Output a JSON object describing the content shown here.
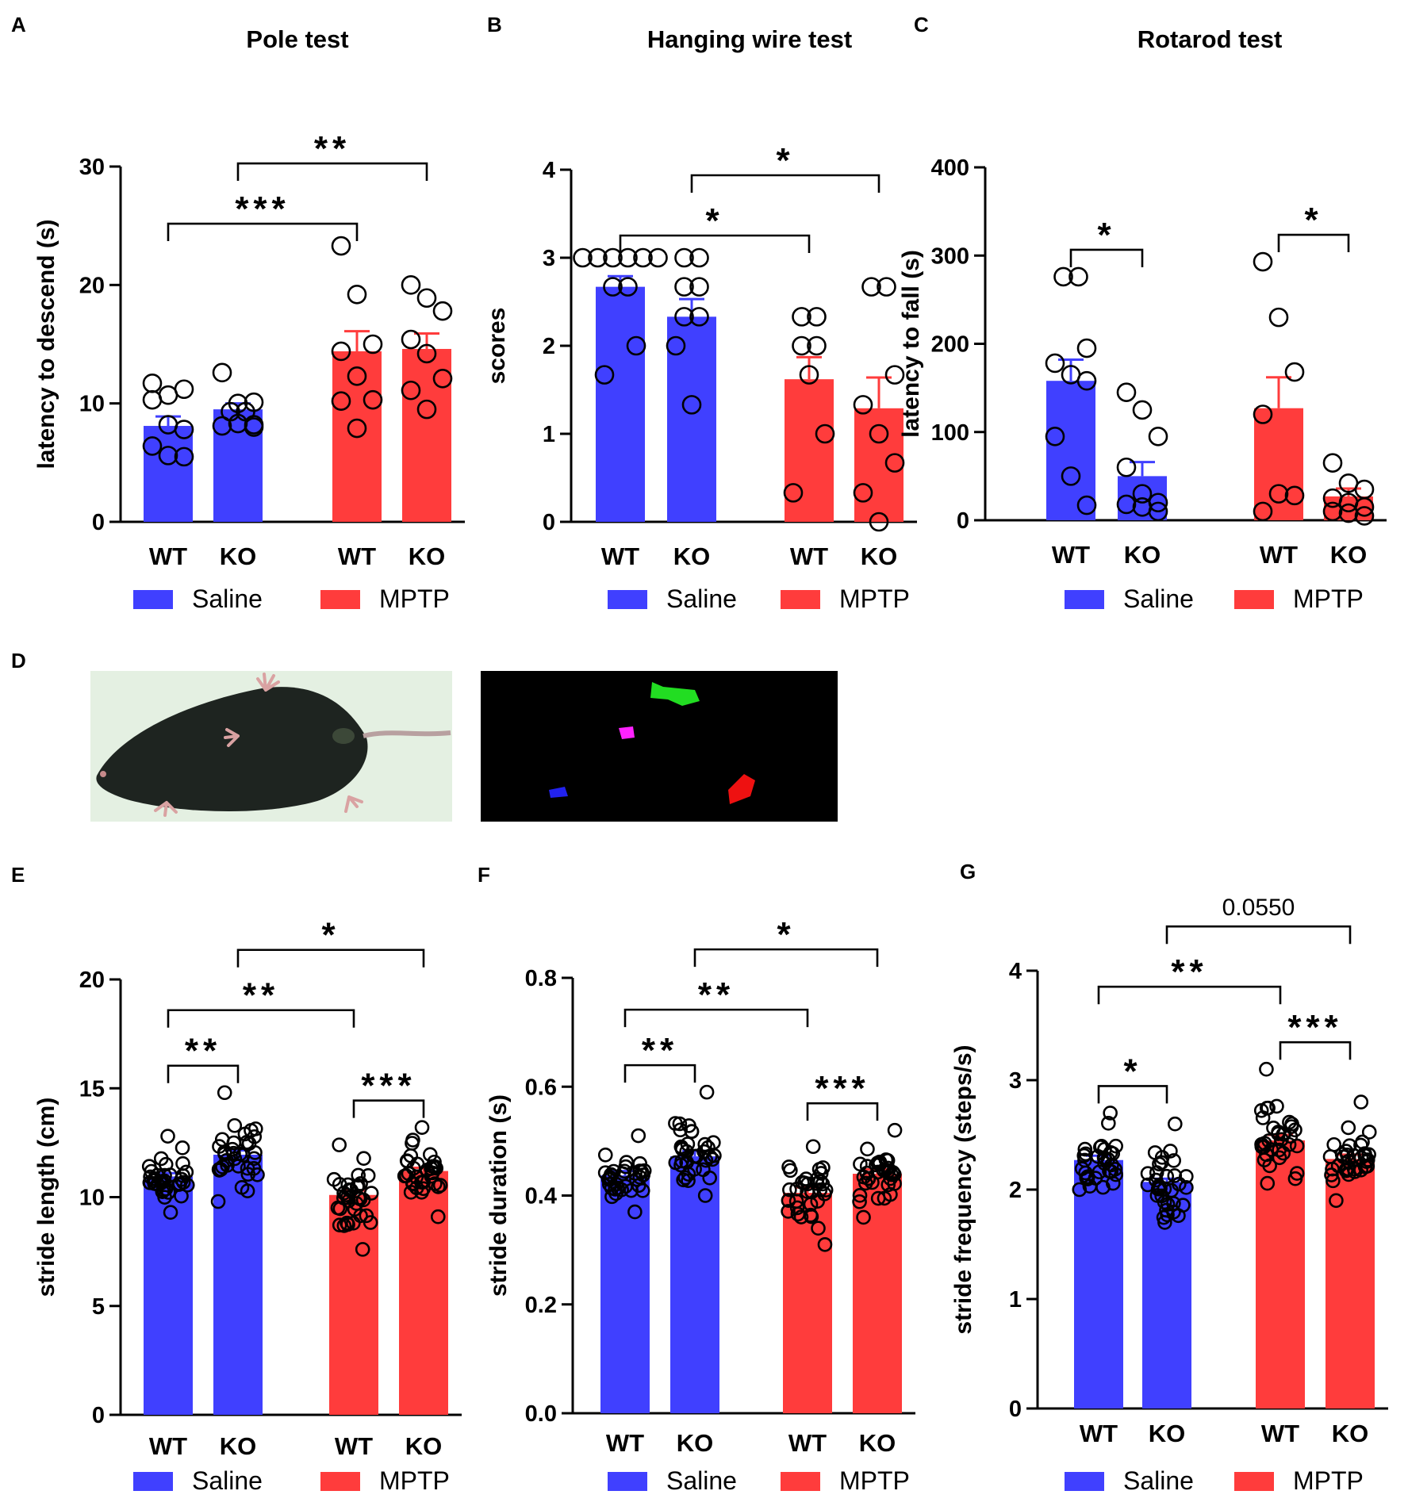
{
  "colors": {
    "saline": "#4040ff",
    "mptp": "#ff3c3c",
    "axis": "#000000"
  },
  "legend": {
    "saline": "Saline",
    "mptp": "MPTP"
  },
  "panel_d": {
    "letter": "D",
    "photo_description": "mouse-ventral-view",
    "paw_colors": [
      "#22dd22",
      "#ff22ff",
      "#2222ee",
      "#ee1111"
    ]
  },
  "chart_data": [
    {
      "panel": "A",
      "type": "bar",
      "title": "Pole test",
      "ylabel": "latency to descend (s)",
      "ylim": [
        0,
        30
      ],
      "yticks": [
        0,
        10,
        20,
        30
      ],
      "categories": [
        "WT",
        "KO",
        "WT",
        "KO"
      ],
      "groups": [
        "Saline",
        "Saline",
        "MPTP",
        "MPTP"
      ],
      "values": [
        8.1,
        9.5,
        14.4,
        14.6
      ],
      "errors": [
        0.8,
        0.5,
        1.7,
        1.3
      ],
      "points": [
        [
          11.7,
          10.7,
          11.2,
          10.3,
          8.2,
          7.8,
          6.4,
          5.6,
          5.5
        ],
        [
          12.6,
          10.0,
          10.1,
          9.3,
          9.3,
          8.2,
          8.1,
          8.3,
          8.0
        ],
        [
          23.3,
          19.2,
          15.0,
          14.4,
          12.3,
          10.3,
          10.2,
          7.9
        ],
        [
          20.0,
          18.9,
          17.8,
          15.4,
          14.2,
          12.1,
          11.1,
          9.5
        ]
      ],
      "brackets": [
        {
          "from": 0,
          "to": 2,
          "label": "***",
          "level": 0
        },
        {
          "from": 1,
          "to": 3,
          "label": "**",
          "level": 1
        }
      ]
    },
    {
      "panel": "B",
      "type": "bar",
      "title": "Hanging wire test",
      "ylabel": "scores",
      "ylim": [
        0,
        4
      ],
      "yticks": [
        0,
        1,
        2,
        3,
        4
      ],
      "categories": [
        "WT",
        "KO",
        "WT",
        "KO"
      ],
      "groups": [
        "Saline",
        "Saline",
        "MPTP",
        "MPTP"
      ],
      "values": [
        2.67,
        2.33,
        1.62,
        1.29
      ],
      "errors": [
        0.12,
        0.2,
        0.25,
        0.35
      ],
      "points": [
        [
          3,
          3,
          3,
          3,
          3,
          3,
          2.67,
          2.67,
          2.0,
          1.67
        ],
        [
          3,
          3,
          2.67,
          2.67,
          2.33,
          2.33,
          2.0,
          1.33
        ],
        [
          2.33,
          2.33,
          2.0,
          2.0,
          1.67,
          1.0,
          0.33
        ],
        [
          2.67,
          2.67,
          1.67,
          1.33,
          1.0,
          0.67,
          0.33,
          0.0
        ]
      ],
      "brackets": [
        {
          "from": 0,
          "to": 2,
          "label": "*",
          "level": 0
        },
        {
          "from": 1,
          "to": 3,
          "label": "*",
          "level": 1
        }
      ]
    },
    {
      "panel": "C",
      "type": "bar",
      "title": "Rotarod test",
      "ylabel": "latency to fall (s)",
      "ylim": [
        0,
        400
      ],
      "yticks": [
        0,
        100,
        200,
        300,
        400
      ],
      "categories": [
        "WT",
        "KO",
        "WT",
        "KO"
      ],
      "groups": [
        "Saline",
        "Saline",
        "MPTP",
        "MPTP"
      ],
      "values": [
        158,
        50,
        127,
        27
      ],
      "errors": [
        24,
        16,
        35,
        9
      ],
      "points": [
        [
          276,
          276,
          195,
          178,
          165,
          158,
          95,
          50,
          17
        ],
        [
          145,
          125,
          95,
          60,
          30,
          20,
          18,
          15,
          10
        ],
        [
          293,
          230,
          168,
          120,
          30,
          28,
          10
        ],
        [
          65,
          42,
          35,
          25,
          20,
          15,
          10,
          8,
          5
        ]
      ],
      "brackets": [
        {
          "from": 0,
          "to": 1,
          "label": "*",
          "level": 0
        },
        {
          "from": 2,
          "to": 3,
          "label": "*",
          "level": 0
        }
      ]
    },
    {
      "panel": "E",
      "type": "bar",
      "title": "",
      "ylabel": "stride length (cm)",
      "ylim": [
        0,
        20
      ],
      "yticks": [
        0,
        5,
        10,
        15,
        20
      ],
      "categories": [
        "WT",
        "KO",
        "WT",
        "KO"
      ],
      "groups": [
        "Saline",
        "Saline",
        "MPTP",
        "MPTP"
      ],
      "values": [
        10.95,
        11.95,
        10.1,
        11.2
      ],
      "errors": [
        0.15,
        0.2,
        0.2,
        0.15
      ],
      "scatter": [
        {
          "center": 10.95,
          "min": 9.3,
          "max": 12.8,
          "n": 34
        },
        {
          "center": 12.0,
          "min": 9.8,
          "max": 14.8,
          "n": 34
        },
        {
          "center": 10.1,
          "min": 7.6,
          "max": 12.4,
          "n": 34
        },
        {
          "center": 11.2,
          "min": 9.1,
          "max": 13.2,
          "n": 34
        }
      ],
      "brackets": [
        {
          "from": 0,
          "to": 1,
          "label": "**",
          "level": 0
        },
        {
          "from": 2,
          "to": 3,
          "label": "***",
          "level": 0
        },
        {
          "from": 0,
          "to": 2,
          "label": "**",
          "level": 1
        },
        {
          "from": 1,
          "to": 3,
          "label": "*",
          "level": 2
        }
      ]
    },
    {
      "panel": "F",
      "type": "bar",
      "title": "",
      "ylabel": "stride duration (s)",
      "ylim": [
        0,
        0.8
      ],
      "yticks": [
        "0.0",
        "0.2",
        "0.4",
        "0.6",
        "0.8"
      ],
      "categories": [
        "WT",
        "KO",
        "WT",
        "KO"
      ],
      "groups": [
        "Saline",
        "Saline",
        "MPTP",
        "MPTP"
      ],
      "values": [
        0.437,
        0.472,
        0.405,
        0.44
      ],
      "errors": [
        0.008,
        0.01,
        0.01,
        0.008
      ],
      "scatter": [
        {
          "center": 0.437,
          "min": 0.37,
          "max": 0.51,
          "n": 34
        },
        {
          "center": 0.475,
          "min": 0.4,
          "max": 0.59,
          "n": 34
        },
        {
          "center": 0.405,
          "min": 0.31,
          "max": 0.49,
          "n": 34
        },
        {
          "center": 0.44,
          "min": 0.36,
          "max": 0.52,
          "n": 34
        }
      ],
      "brackets": [
        {
          "from": 0,
          "to": 1,
          "label": "**",
          "level": 0
        },
        {
          "from": 2,
          "to": 3,
          "label": "***",
          "level": 0
        },
        {
          "from": 0,
          "to": 2,
          "label": "**",
          "level": 1
        },
        {
          "from": 1,
          "to": 3,
          "label": "*",
          "level": 2
        }
      ]
    },
    {
      "panel": "G",
      "type": "bar",
      "title": "",
      "ylabel": "stride frequency (steps/s)",
      "ylim": [
        0,
        4
      ],
      "yticks": [
        0,
        1,
        2,
        3,
        4
      ],
      "categories": [
        "WT",
        "KO",
        "WT",
        "KO"
      ],
      "groups": [
        "Saline",
        "Saline",
        "MPTP",
        "MPTP"
      ],
      "values": [
        2.27,
        2.07,
        2.45,
        2.28
      ],
      "errors": [
        0.04,
        0.03,
        0.05,
        0.04
      ],
      "scatter": [
        {
          "center": 2.27,
          "min": 2.0,
          "max": 2.7,
          "n": 34
        },
        {
          "center": 2.07,
          "min": 1.7,
          "max": 2.6,
          "n": 34
        },
        {
          "center": 2.45,
          "min": 2.1,
          "max": 3.1,
          "n": 34
        },
        {
          "center": 2.28,
          "min": 1.9,
          "max": 2.8,
          "n": 34
        }
      ],
      "brackets": [
        {
          "from": 0,
          "to": 1,
          "label": "*",
          "level": 0
        },
        {
          "from": 2,
          "to": 3,
          "label": "***",
          "level": 0
        },
        {
          "from": 0,
          "to": 2,
          "label": "**",
          "level": 1
        },
        {
          "from": 1,
          "to": 3,
          "label": "0.0550",
          "level": 2
        }
      ]
    }
  ]
}
